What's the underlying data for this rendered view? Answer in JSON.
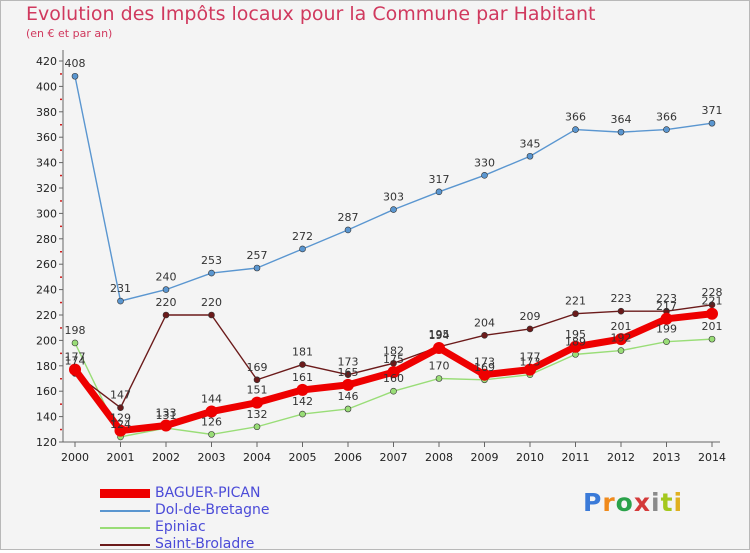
{
  "title": "Evolution des Impôts locaux pour la Commune par Habitant",
  "subtitle": "(en € et par an)",
  "logo": {
    "text": "Proxiti",
    "colors": [
      "#3a7ad8",
      "#f08a1c",
      "#2aa24a",
      "#d43a3a",
      "#8a8a8a",
      "#a4c81e",
      "#e0b020"
    ]
  },
  "chart_data": {
    "type": "line",
    "title": "Evolution des Impôts locaux pour la Commune par Habitant",
    "subtitle": "(en € et par an)",
    "xlabel": "",
    "ylabel": "",
    "ylim": [
      120,
      420
    ],
    "yticks": [
      120,
      140,
      160,
      180,
      200,
      220,
      240,
      260,
      280,
      300,
      320,
      340,
      360,
      380,
      400,
      420
    ],
    "x": [
      "2000",
      "2001",
      "2002",
      "2003",
      "2004",
      "2005",
      "2006",
      "2007",
      "2008",
      "2009",
      "2010",
      "2011",
      "2012",
      "2013",
      "2014"
    ],
    "series": [
      {
        "name": "BAGUER-PICAN",
        "color": "#ee0000",
        "values": [
          177,
          129,
          133,
          144,
          151,
          161,
          165,
          175,
          194,
          173,
          177,
          195,
          201,
          217,
          221
        ]
      },
      {
        "name": "Dol-de-Bretagne",
        "color": "#5a96d0",
        "values": [
          408,
          231,
          240,
          253,
          257,
          272,
          287,
          303,
          317,
          330,
          345,
          366,
          364,
          366,
          371
        ]
      },
      {
        "name": "Epiniac",
        "color": "#99dd77",
        "values": [
          198,
          124,
          131,
          126,
          132,
          142,
          146,
          160,
          170,
          169,
          173,
          189,
          192,
          199,
          201
        ]
      },
      {
        "name": "Saint-Broladre",
        "color": "#6b1a1a",
        "values": [
          174,
          147,
          220,
          220,
          169,
          181,
          173,
          182,
          195,
          204,
          209,
          221,
          223,
          223,
          228
        ]
      }
    ],
    "legend_position": "bottom-left"
  }
}
